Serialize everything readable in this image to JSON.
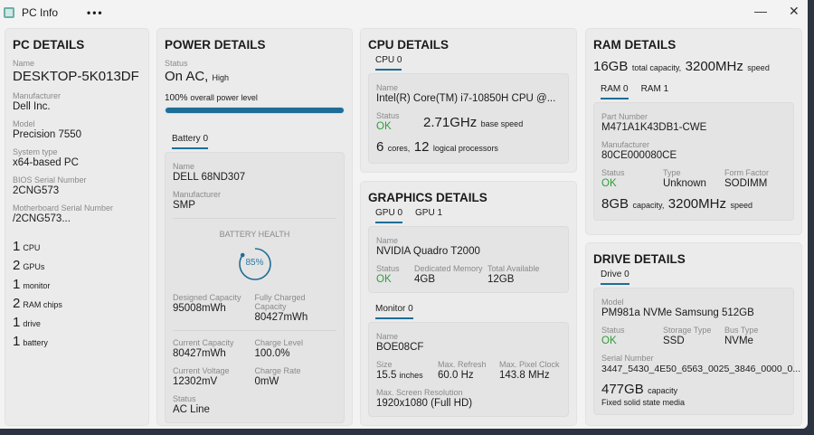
{
  "window": {
    "title": "PC Info",
    "more": "•••",
    "minimize": "—",
    "close": "✕"
  },
  "pc": {
    "title": "PC DETAILS",
    "name_label": "Name",
    "name": "DESKTOP-5K013DF",
    "manufacturer_label": "Manufacturer",
    "manufacturer": "Dell Inc.",
    "model_label": "Model",
    "model": "Precision 7550",
    "systype_label": "System type",
    "systype": "x64-based PC",
    "bios_label": "BIOS Serial Number",
    "bios": "2CNG573",
    "mb_label": "Motherboard Serial Number",
    "mb": "/2CNG573...",
    "counts": [
      {
        "n": "1",
        "t": "CPU"
      },
      {
        "n": "2",
        "t": "GPUs"
      },
      {
        "n": "1",
        "t": "monitor"
      },
      {
        "n": "2",
        "t": "RAM chips"
      },
      {
        "n": "1",
        "t": "drive"
      },
      {
        "n": "1",
        "t": "battery"
      }
    ]
  },
  "power": {
    "title": "POWER DETAILS",
    "status_label": "Status",
    "status": "On AC,",
    "status_mode": "High",
    "level": "100%",
    "level_text": "overall power level",
    "level_value": 100,
    "tab": "Battery 0",
    "battery": {
      "name_label": "Name",
      "name": "DELL 68ND307",
      "manufacturer_label": "Manufacturer",
      "manufacturer": "SMP",
      "health_label": "BATTERY HEALTH",
      "health": "85%",
      "health_value": 85,
      "designed_label": "Designed Capacity",
      "designed": "95008mWh",
      "full_label": "Fully Charged Capacity",
      "full": "80427mWh",
      "current_label": "Current Capacity",
      "current": "80427mWh",
      "charge_label": "Charge Level",
      "charge": "100.0%",
      "voltage_label": "Current Voltage",
      "voltage": "12302mV",
      "rate_label": "Charge Rate",
      "rate": "0mW",
      "status_label": "Status",
      "status": "AC Line"
    }
  },
  "cpu": {
    "title": "CPU DETAILS",
    "tab": "CPU 0",
    "name_label": "Name",
    "name": "Intel(R) Core(TM) i7-10850H CPU @...",
    "status_label": "Status",
    "status": "OK",
    "speed": "2.71GHz",
    "speed_text": "base speed",
    "cores": "6",
    "cores_text": "cores,",
    "logical": "12",
    "logical_text": "logical processors"
  },
  "graphics": {
    "title": "GRAPHICS DETAILS",
    "tabs": [
      "GPU 0",
      "GPU 1"
    ],
    "name_label": "Name",
    "name": "NVIDIA Quadro T2000",
    "status_label": "Status",
    "status": "OK",
    "dedicated_label": "Dedicated Memory",
    "dedicated": "4GB",
    "total_label": "Total Available",
    "total": "12GB",
    "monitor_tab": "Monitor 0",
    "monitor": {
      "name_label": "Name",
      "name": "BOE08CF",
      "size_label": "Size",
      "size": "15.5",
      "size_unit": "inches",
      "refresh_label": "Max. Refresh",
      "refresh": "60.0 Hz",
      "clock_label": "Max. Pixel Clock",
      "clock": "143.8 MHz",
      "res_label": "Max. Screen Resolution",
      "res": "1920x1080 (Full HD)"
    }
  },
  "ram": {
    "title": "RAM DETAILS",
    "total": "16GB",
    "total_text": "total capacity,",
    "speed": "3200MHz",
    "speed_text": "speed",
    "tabs": [
      "RAM 0",
      "RAM 1"
    ],
    "part_label": "Part Number",
    "part": "M471A1K43DB1-CWE",
    "manufacturer_label": "Manufacturer",
    "manufacturer": "80CE000080CE",
    "status_label": "Status",
    "status": "OK",
    "type_label": "Type",
    "type": "Unknown",
    "ff_label": "Form Factor",
    "ff": "SODIMM",
    "cap": "8GB",
    "cap_text": "capacity,",
    "cspeed": "3200MHz",
    "cspeed_text": "speed"
  },
  "drive": {
    "title": "DRIVE DETAILS",
    "tab": "Drive 0",
    "model_label": "Model",
    "model": "PM981a NVMe Samsung 512GB",
    "status_label": "Status",
    "status": "OK",
    "stype_label": "Storage Type",
    "stype": "SSD",
    "bus_label": "Bus Type",
    "bus": "NVMe",
    "serial_label": "Serial Number",
    "serial": "3447_5430_4E50_6563_0025_3846_0000_0...",
    "cap": "477GB",
    "cap_text": "capacity",
    "media": "Fixed solid state media"
  },
  "colors": {
    "accent": "#1e6d96",
    "ok": "#2e9e3a"
  }
}
